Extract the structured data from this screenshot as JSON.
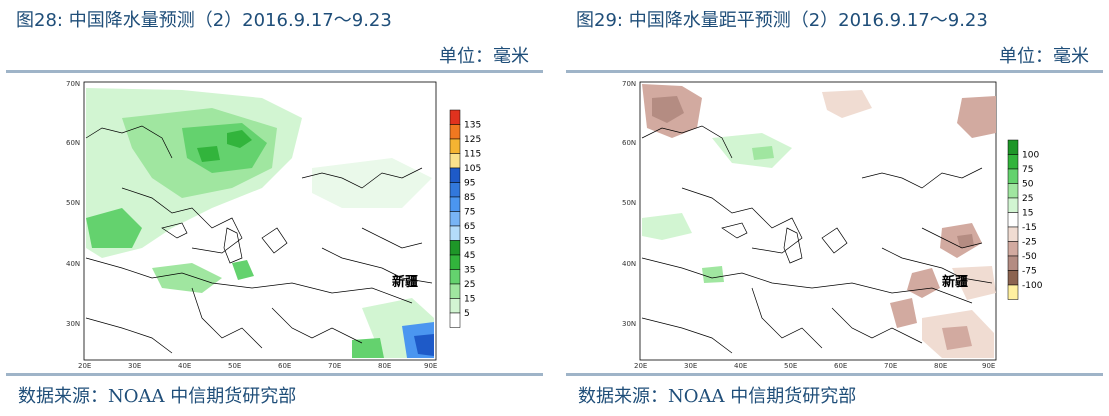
{
  "left": {
    "title": "图28: 中国降水量预测（2）2016.9.17～9.23",
    "unit": "单位：毫米",
    "source": "数据来源：NOAA 中信期货研究部",
    "map": {
      "lat_labels": [
        "70N",
        "60N",
        "50N",
        "40N",
        "30N"
      ],
      "lon_labels": [
        "20E",
        "30E",
        "40E",
        "50E",
        "60E",
        "70E",
        "80E",
        "90E"
      ],
      "region_label": "新疆",
      "legend_labels": [
        "135",
        "125",
        "115",
        "105",
        "95",
        "85",
        "75",
        "65",
        "55",
        "45",
        "35",
        "25",
        "15",
        "5"
      ],
      "legend_colors": [
        "#e1321e",
        "#f07820",
        "#f5b432",
        "#fae18c",
        "#1e5ac8",
        "#3278dc",
        "#4b96f0",
        "#78b4f5",
        "#b4dcfa",
        "#1e9628",
        "#32b43c",
        "#64d26e",
        "#a0e6a0",
        "#d2f5d2",
        "#ffffff"
      ]
    }
  },
  "right": {
    "title": "图29: 中国降水量距平预测（2）2016.9.17～9.23",
    "unit": "单位：毫米",
    "source": "数据来源：NOAA 中信期货研究部",
    "map": {
      "lat_labels": [
        "70N",
        "60N",
        "50N",
        "40N",
        "30N"
      ],
      "lon_labels": [
        "20E",
        "30E",
        "40E",
        "50E",
        "60E",
        "70E",
        "80E",
        "90E"
      ],
      "region_label": "新疆",
      "legend_labels": [
        "100",
        "75",
        "50",
        "25",
        "15",
        "-15",
        "-25",
        "-50",
        "-75",
        "-100"
      ],
      "legend_colors": [
        "#1e9628",
        "#32b43c",
        "#64d26e",
        "#a0e6a0",
        "#d2f5d2",
        "#ffffff",
        "#f0dcd2",
        "#d2aaa0",
        "#b48c82",
        "#8c6450",
        "#fff0a0"
      ]
    }
  }
}
